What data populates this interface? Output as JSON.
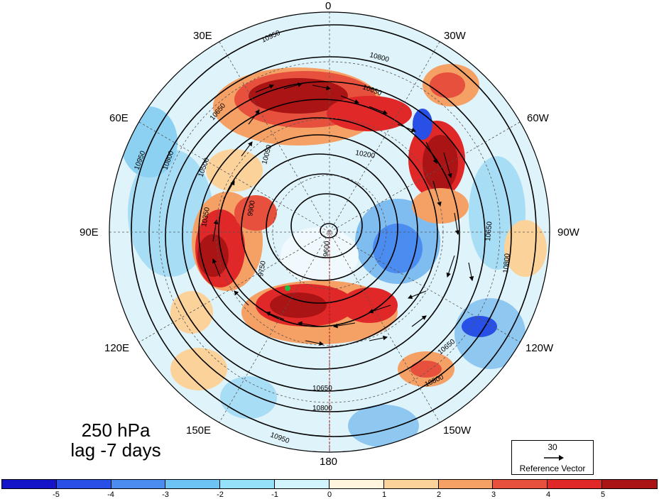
{
  "lon_labels": {
    "n0": "0",
    "n30e": "30E",
    "n60e": "60E",
    "n90e": "90E",
    "n120e": "120E",
    "n150e": "150E",
    "n180": "180",
    "n150w": "150W",
    "n120w": "120W",
    "n90w": "90W",
    "n60w": "60W",
    "n30w": "30W"
  },
  "caption": {
    "level": "250 hPa",
    "lag": "lag -7 days"
  },
  "reference_vector": {
    "magnitude": "30",
    "label": "Reference Vector"
  },
  "contour_labels": [
    "10950",
    "10800",
    "10650",
    "10500",
    "10350",
    "10200",
    "10050",
    "9900",
    "9750",
    "9600"
  ],
  "colorbar": {
    "ticks": [
      "-5",
      "-4",
      "-3",
      "-2",
      "-1",
      "0",
      "1",
      "2",
      "3",
      "4",
      "5"
    ],
    "colors": [
      "#1414c8",
      "#2850e6",
      "#4b8cf0",
      "#6ec3f5",
      "#96e1fa",
      "#d2f5fd",
      "#fff5dc",
      "#fcd29b",
      "#f5a064",
      "#e6503c",
      "#e12828",
      "#aa1414"
    ]
  }
}
